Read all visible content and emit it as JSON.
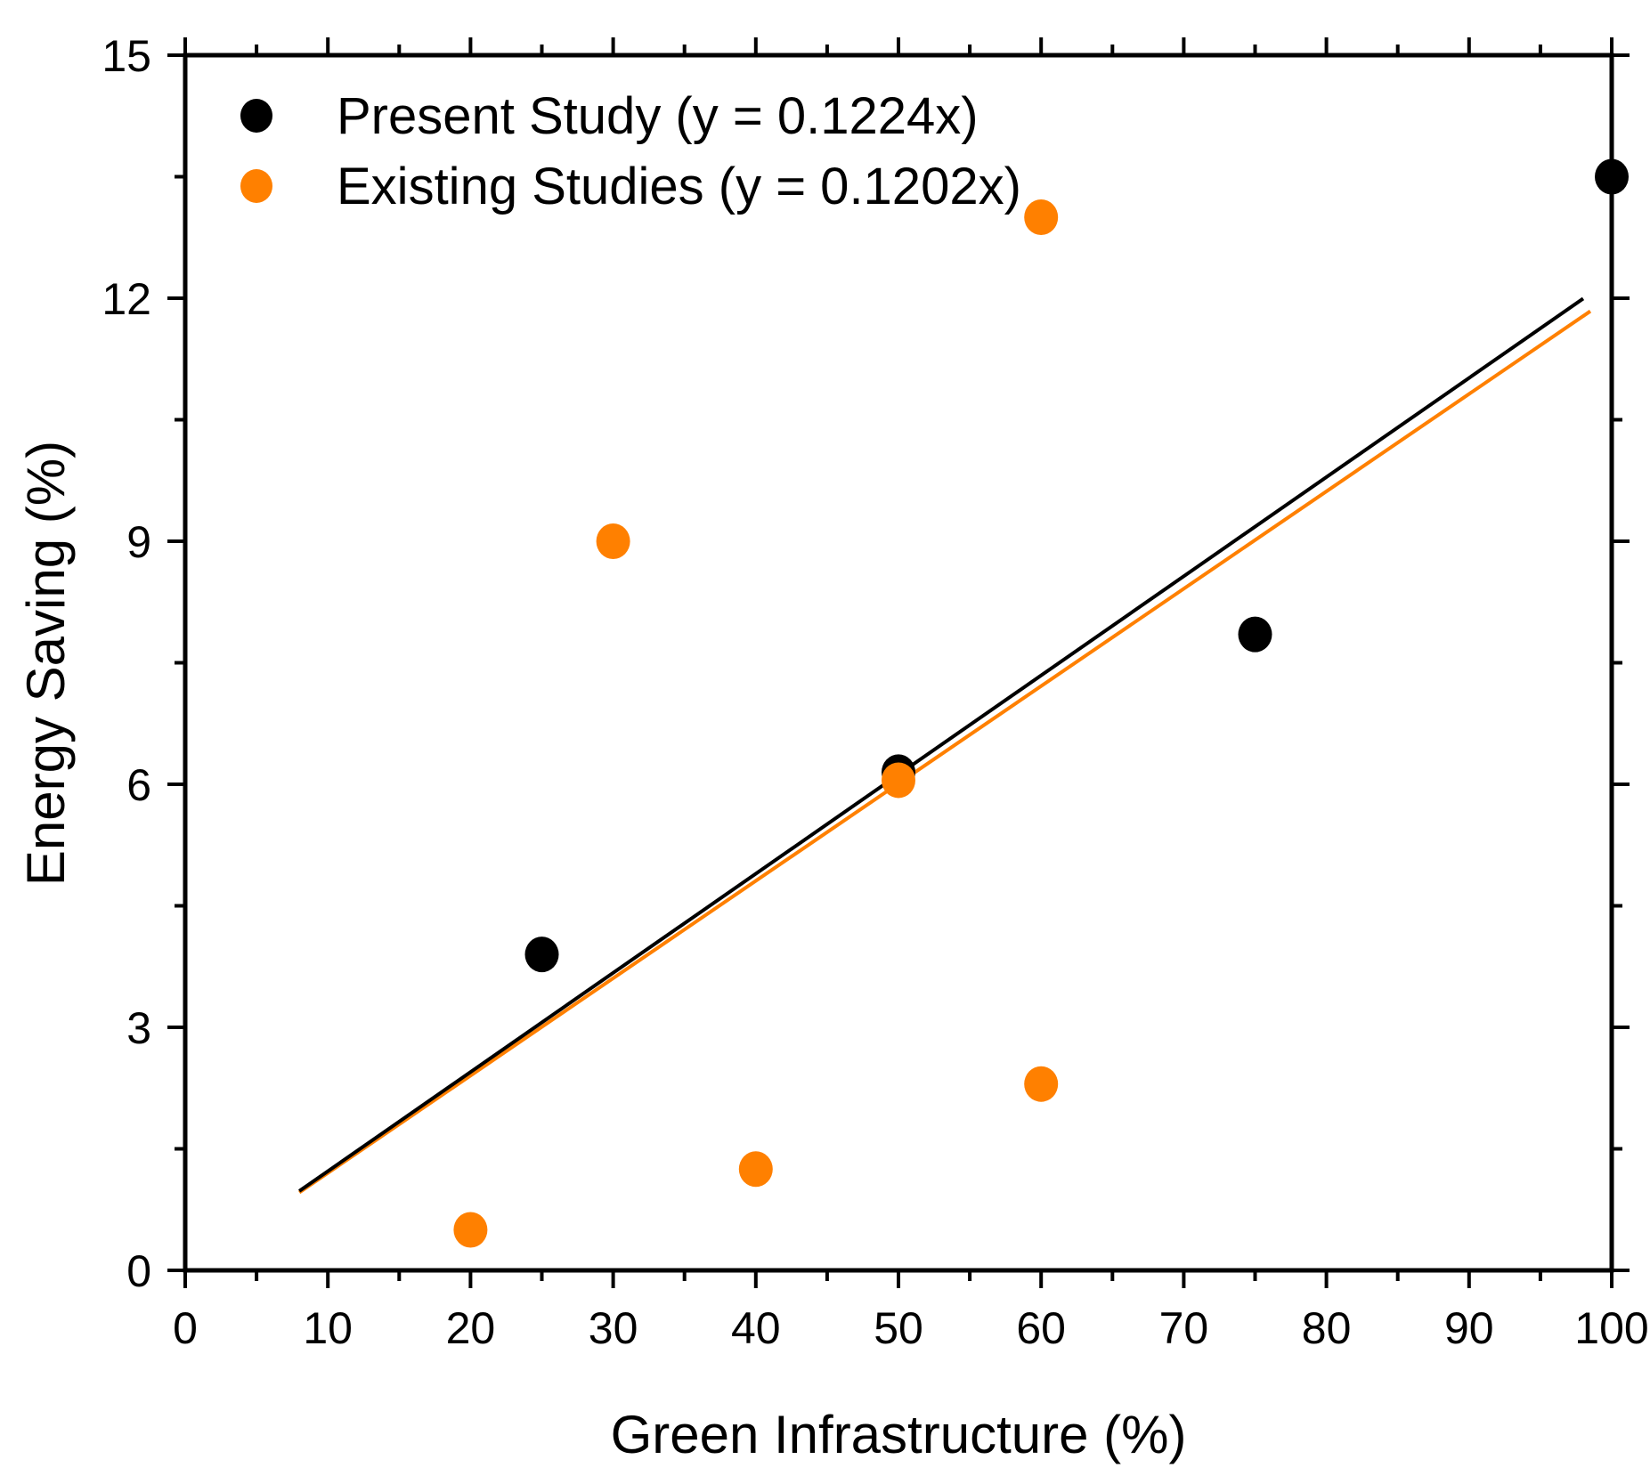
{
  "chart_data": {
    "type": "scatter",
    "xlabel": "Green Infrastructure (%)",
    "ylabel": "Energy Saving (%)",
    "xlim": [
      0,
      100
    ],
    "ylim": [
      0,
      15
    ],
    "x_ticks": [
      0,
      10,
      20,
      30,
      40,
      50,
      60,
      70,
      80,
      90,
      100
    ],
    "y_ticks": [
      0,
      3,
      6,
      9,
      12,
      15
    ],
    "grid": false,
    "legend_position": "top-left",
    "series": [
      {
        "name": "Present Study (y = 0.1224x)",
        "color": "#000000",
        "points": [
          {
            "x": 25,
            "y": 3.9
          },
          {
            "x": 50,
            "y": 6.15
          },
          {
            "x": 75,
            "y": 7.85
          },
          {
            "x": 100,
            "y": 13.5
          }
        ],
        "fit": {
          "slope": 0.1224,
          "x_range": [
            8,
            98
          ]
        }
      },
      {
        "name": "Existing Studies (y = 0.1202x)",
        "color": "#ff8000",
        "points": [
          {
            "x": 20,
            "y": 0.5
          },
          {
            "x": 30,
            "y": 9.0
          },
          {
            "x": 40,
            "y": 1.25
          },
          {
            "x": 50,
            "y": 6.05
          },
          {
            "x": 60,
            "y": 13.0
          },
          {
            "x": 60,
            "y": 2.3
          }
        ],
        "fit": {
          "slope": 0.1202,
          "x_range": [
            8,
            98.5
          ]
        }
      }
    ]
  }
}
